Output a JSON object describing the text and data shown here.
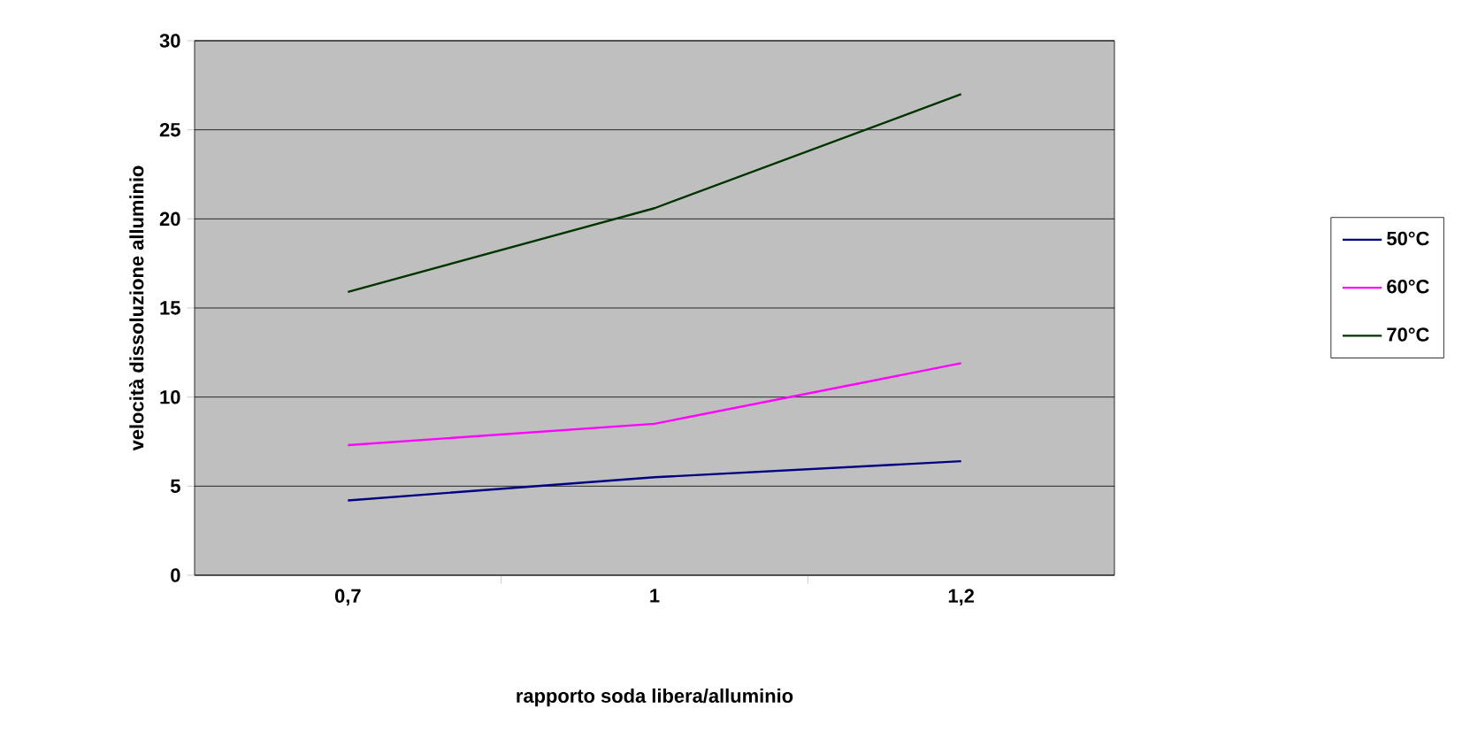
{
  "chart_data": {
    "type": "line",
    "xlabel": "rapporto soda libera/alluminio",
    "ylabel": "velocità dissoluzione alluminio",
    "categories": [
      "0,7",
      "1",
      "1,2"
    ],
    "series": [
      {
        "name": "50°C",
        "color": "#000080",
        "values": [
          4.2,
          5.5,
          6.4
        ]
      },
      {
        "name": "60°C",
        "color": "#ff00ff",
        "values": [
          7.3,
          8.5,
          11.9
        ]
      },
      {
        "name": "70°C",
        "color": "#003300",
        "values": [
          15.9,
          20.6,
          27.0
        ]
      }
    ],
    "ylim": [
      0,
      30
    ],
    "yticks": [
      0,
      5,
      10,
      15,
      20,
      25,
      30
    ],
    "grid": "y",
    "legend": "right",
    "marker": "none",
    "line_style": "solid"
  }
}
